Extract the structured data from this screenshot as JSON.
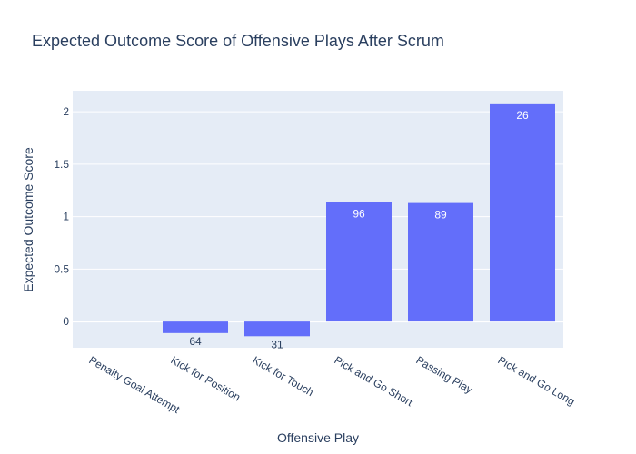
{
  "chart_data": {
    "type": "bar",
    "title": "Expected Outcome Score of Offensive Plays After Scrum",
    "xlabel": "Offensive Play",
    "ylabel": "Expected Outcome Score",
    "categories": [
      "Penalty Goal Attempt",
      "Kick for Position",
      "Kick for Touch",
      "Pick and Go Short",
      "Passing Play",
      "Pick and Go Long"
    ],
    "values": [
      0,
      -0.11,
      -0.14,
      1.14,
      1.13,
      2.08
    ],
    "data_labels": [
      "",
      "64",
      "31",
      "96",
      "89",
      "26"
    ],
    "ylim": [
      -0.25,
      2.2
    ],
    "yticks": [
      0,
      0.5,
      1,
      1.5,
      2
    ],
    "ytick_labels": [
      "0",
      "0.5",
      "1",
      "1.5",
      "2"
    ],
    "grid": true,
    "colors": {
      "bar": "#636efa",
      "plot_background": "#e5ecf6",
      "grid": "#ffffff",
      "text": "#2a3f5f",
      "label_inside": "#ffffff",
      "label_outside": "#2a3f5f"
    }
  }
}
